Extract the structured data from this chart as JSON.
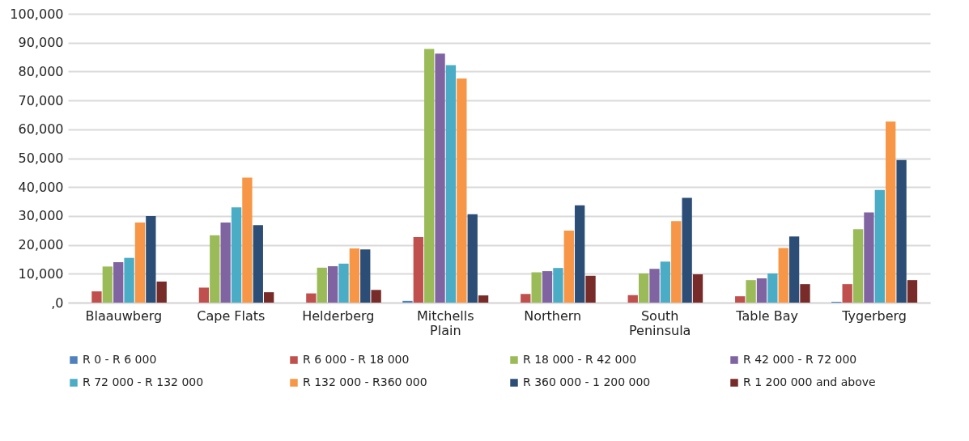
{
  "chart_data": {
    "type": "bar",
    "categories": [
      "Blaauwberg",
      "Cape Flats",
      "Helderberg",
      "Mitchells Plain",
      "Northern",
      "South Peninsula",
      "Table Bay",
      "Tygerberg"
    ],
    "series": [
      {
        "name": "R 0 - R 6 000",
        "color": "#4f81bd",
        "values": [
          null,
          null,
          null,
          600,
          null,
          null,
          null,
          300
        ]
      },
      {
        "name": "R 6 000 - R 18 000",
        "color": "#c0504d",
        "values": [
          3900,
          5200,
          3200,
          22700,
          3000,
          2600,
          2200,
          6400
        ]
      },
      {
        "name": "R 18 000 - R 42 000",
        "color": "#9bbb59",
        "values": [
          12500,
          23300,
          12100,
          87800,
          10500,
          10100,
          7800,
          25400
        ]
      },
      {
        "name": "R 42 000 - R 72 000",
        "color": "#8064a2",
        "values": [
          14000,
          27700,
          12600,
          86200,
          10900,
          11700,
          8400,
          31200
        ]
      },
      {
        "name": "R 72 000 - R 132 000",
        "color": "#4bacc6",
        "values": [
          15500,
          33000,
          13500,
          82200,
          12000,
          14200,
          10100,
          39000
        ]
      },
      {
        "name": "R 132 000 - R360 000",
        "color": "#f79646",
        "values": [
          27700,
          43300,
          18800,
          77600,
          24900,
          28200,
          18900,
          62700
        ]
      },
      {
        "name": "R 360 000 - 1 200 000",
        "color": "#2c4d75",
        "values": [
          30000,
          26800,
          18400,
          30600,
          33700,
          36300,
          22900,
          49400
        ]
      },
      {
        "name": "R 1 200 000 and  above",
        "color": "#772c2a",
        "values": [
          7300,
          3600,
          4400,
          2500,
          9300,
          9800,
          6400,
          7800
        ]
      }
    ],
    "ylim": [
      0,
      100000
    ],
    "yticks": [
      {
        "value": 0,
        "label": ",0"
      },
      {
        "value": 10000,
        "label": "10,000"
      },
      {
        "value": 20000,
        "label": "20,000"
      },
      {
        "value": 30000,
        "label": "30,000"
      },
      {
        "value": 40000,
        "label": "40,000"
      },
      {
        "value": 50000,
        "label": "50,000"
      },
      {
        "value": 60000,
        "label": "60,000"
      },
      {
        "value": 70000,
        "label": "70,000"
      },
      {
        "value": 80000,
        "label": "80,000"
      },
      {
        "value": 90000,
        "label": "90,000"
      },
      {
        "value": 100000,
        "label": "100,000"
      }
    ],
    "grid": "y",
    "legend": "bottom"
  }
}
